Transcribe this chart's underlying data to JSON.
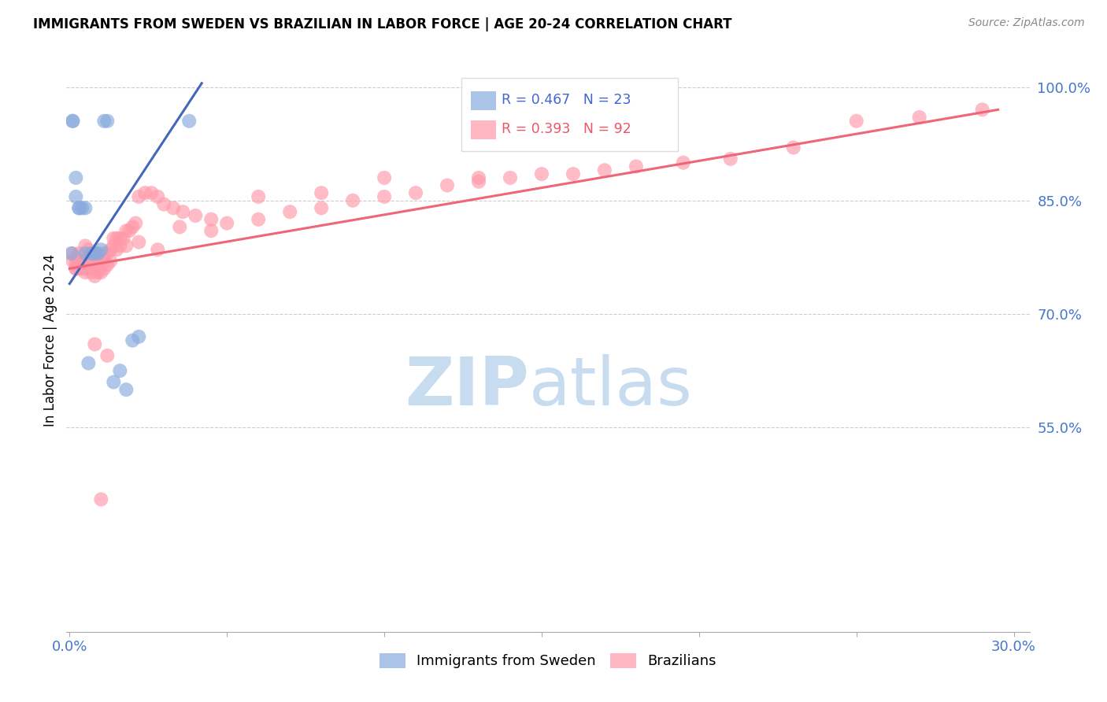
{
  "title": "IMMIGRANTS FROM SWEDEN VS BRAZILIAN IN LABOR FORCE | AGE 20-24 CORRELATION CHART",
  "source_text": "Source: ZipAtlas.com",
  "ylabel": "In Labor Force | Age 20-24",
  "xlim": [
    -0.001,
    0.305
  ],
  "ylim": [
    0.28,
    1.05
  ],
  "yticks": [
    1.0,
    0.85,
    0.7,
    0.55
  ],
  "ytick_labels": [
    "100.0%",
    "85.0%",
    "70.0%",
    "55.0%"
  ],
  "xticks": [
    0.0,
    0.05,
    0.1,
    0.15,
    0.2,
    0.25,
    0.3
  ],
  "xtick_labels": [
    "0.0%",
    "",
    "",
    "",
    "",
    "",
    "30.0%"
  ],
  "sweden_R": 0.467,
  "sweden_N": 23,
  "brazil_R": 0.393,
  "brazil_N": 92,
  "sweden_color": "#88AADD",
  "brazil_color": "#FF99AA",
  "sweden_line_color": "#4466BB",
  "brazil_line_color": "#EE6677",
  "sweden_x": [
    0.0005,
    0.001,
    0.001,
    0.002,
    0.002,
    0.003,
    0.003,
    0.004,
    0.005,
    0.005,
    0.006,
    0.007,
    0.008,
    0.009,
    0.01,
    0.011,
    0.012,
    0.014,
    0.016,
    0.018,
    0.02,
    0.022,
    0.038
  ],
  "sweden_y": [
    0.78,
    0.955,
    0.955,
    0.88,
    0.855,
    0.84,
    0.84,
    0.84,
    0.84,
    0.78,
    0.635,
    0.78,
    0.78,
    0.78,
    0.785,
    0.955,
    0.955,
    0.61,
    0.625,
    0.6,
    0.665,
    0.67,
    0.955
  ],
  "brazil_x": [
    0.001,
    0.001,
    0.002,
    0.002,
    0.003,
    0.003,
    0.003,
    0.004,
    0.004,
    0.005,
    0.005,
    0.005,
    0.006,
    0.006,
    0.007,
    0.007,
    0.007,
    0.008,
    0.008,
    0.008,
    0.009,
    0.009,
    0.01,
    0.01,
    0.011,
    0.011,
    0.012,
    0.012,
    0.013,
    0.013,
    0.014,
    0.015,
    0.015,
    0.016,
    0.016,
    0.017,
    0.018,
    0.019,
    0.02,
    0.021,
    0.022,
    0.024,
    0.026,
    0.028,
    0.03,
    0.033,
    0.036,
    0.04,
    0.045,
    0.05,
    0.06,
    0.07,
    0.08,
    0.09,
    0.1,
    0.11,
    0.12,
    0.13,
    0.14,
    0.15,
    0.16,
    0.17,
    0.18,
    0.195,
    0.21,
    0.23,
    0.25,
    0.27,
    0.29,
    0.16,
    0.13,
    0.1,
    0.08,
    0.06,
    0.045,
    0.035,
    0.028,
    0.022,
    0.018,
    0.014,
    0.011,
    0.009,
    0.007,
    0.006,
    0.005,
    0.004,
    0.003,
    0.002,
    0.002,
    0.008,
    0.012,
    0.01
  ],
  "brazil_y": [
    0.78,
    0.77,
    0.775,
    0.76,
    0.78,
    0.77,
    0.76,
    0.77,
    0.76,
    0.77,
    0.76,
    0.755,
    0.77,
    0.76,
    0.775,
    0.765,
    0.755,
    0.77,
    0.76,
    0.75,
    0.765,
    0.755,
    0.77,
    0.755,
    0.775,
    0.76,
    0.78,
    0.765,
    0.785,
    0.77,
    0.79,
    0.8,
    0.785,
    0.8,
    0.79,
    0.8,
    0.81,
    0.81,
    0.815,
    0.82,
    0.855,
    0.86,
    0.86,
    0.855,
    0.845,
    0.84,
    0.835,
    0.83,
    0.825,
    0.82,
    0.825,
    0.835,
    0.84,
    0.85,
    0.855,
    0.86,
    0.87,
    0.875,
    0.88,
    0.885,
    0.885,
    0.89,
    0.895,
    0.9,
    0.905,
    0.92,
    0.955,
    0.96,
    0.97,
    1.0,
    0.88,
    0.88,
    0.86,
    0.855,
    0.81,
    0.815,
    0.785,
    0.795,
    0.79,
    0.8,
    0.78,
    0.76,
    0.78,
    0.785,
    0.79,
    0.765,
    0.77,
    0.76,
    0.765,
    0.66,
    0.645,
    0.455
  ],
  "sweden_line_x": [
    0.0,
    0.042
  ],
  "sweden_line_y": [
    0.74,
    1.005
  ],
  "brazil_line_x": [
    0.0,
    0.295
  ],
  "brazil_line_y": [
    0.76,
    0.97
  ]
}
